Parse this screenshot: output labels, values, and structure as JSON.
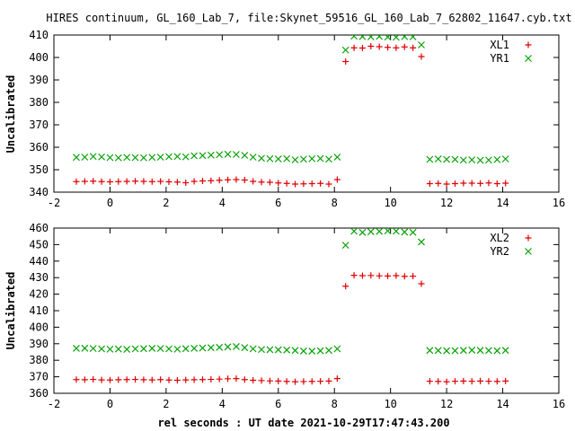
{
  "title": "HIRES continuum, GL_160_Lab_7, file:Skynet_59516_GL_160_Lab_7_62802_11647.cyb.txt",
  "xlabel": "rel seconds : UT date 2021-10-29T17:47:43.200",
  "colors": {
    "red": "#e00000",
    "green": "#00a000"
  },
  "chart_data": [
    {
      "type": "scatter",
      "ylabel": "Uncalibrated",
      "xlim": [
        -2,
        16
      ],
      "ylim": [
        340,
        410
      ],
      "xticks": [
        "-2",
        "0",
        "2",
        "4",
        "6",
        "8",
        "10",
        "12",
        "14",
        "16"
      ],
      "yticks": [
        "340",
        "350",
        "360",
        "370",
        "380",
        "390",
        "400",
        "410"
      ],
      "series": [
        {
          "name": "XL1",
          "marker": "plus",
          "color": "#e00000",
          "x": [
            -1.2,
            -0.9,
            -0.6,
            -0.3,
            0.0,
            0.3,
            0.6,
            0.9,
            1.2,
            1.5,
            1.8,
            2.1,
            2.4,
            2.7,
            3.0,
            3.3,
            3.6,
            3.9,
            4.2,
            4.5,
            4.8,
            5.1,
            5.4,
            5.7,
            6.0,
            6.3,
            6.6,
            6.9,
            7.2,
            7.5,
            7.8,
            8.1,
            8.4,
            8.7,
            9.0,
            9.3,
            9.6,
            9.9,
            10.2,
            10.5,
            10.8,
            11.1,
            11.4,
            11.7,
            12.0,
            12.3,
            12.6,
            12.9,
            13.2,
            13.5,
            13.8,
            14.1
          ],
          "y": [
            344.7,
            344.8,
            344.9,
            344.7,
            344.6,
            344.7,
            344.8,
            344.9,
            344.8,
            344.7,
            344.8,
            344.6,
            344.5,
            344.2,
            344.8,
            345.0,
            345.1,
            345.3,
            345.5,
            345.6,
            345.4,
            344.8,
            344.5,
            344.4,
            344.1,
            343.9,
            343.6,
            343.7,
            343.8,
            343.9,
            343.6,
            345.6,
            398.2,
            404.3,
            404.2,
            405.0,
            404.8,
            404.5,
            404.3,
            404.7,
            404.3,
            400.4,
            343.8,
            343.9,
            343.6,
            343.8,
            344.0,
            344.0,
            343.9,
            344.1,
            343.8,
            344.0
          ]
        },
        {
          "name": "YR1",
          "marker": "cross",
          "color": "#00a000",
          "x": [
            -1.2,
            -0.9,
            -0.6,
            -0.3,
            0.0,
            0.3,
            0.6,
            0.9,
            1.2,
            1.5,
            1.8,
            2.1,
            2.4,
            2.7,
            3.0,
            3.3,
            3.6,
            3.9,
            4.2,
            4.5,
            4.8,
            5.1,
            5.4,
            5.7,
            6.0,
            6.3,
            6.6,
            6.9,
            7.2,
            7.5,
            7.8,
            8.1,
            8.4,
            8.7,
            9.0,
            9.3,
            9.6,
            9.9,
            10.2,
            10.5,
            10.8,
            11.1,
            11.4,
            11.7,
            12.0,
            12.3,
            12.6,
            12.9,
            13.2,
            13.5,
            13.8,
            14.1
          ],
          "y": [
            355.5,
            355.6,
            355.9,
            355.7,
            355.4,
            355.3,
            355.5,
            355.4,
            355.3,
            355.5,
            355.6,
            355.8,
            355.9,
            355.7,
            356.2,
            356.3,
            356.5,
            356.7,
            356.9,
            356.8,
            356.4,
            355.6,
            355.1,
            354.9,
            354.8,
            354.9,
            354.4,
            354.7,
            354.9,
            355.0,
            354.7,
            355.6,
            403.3,
            409.5,
            409.3,
            409.2,
            409.4,
            409.1,
            409.0,
            409.3,
            409.2,
            405.6,
            354.6,
            354.8,
            354.6,
            354.6,
            354.3,
            354.4,
            354.2,
            354.3,
            354.5,
            354.8
          ]
        }
      ]
    },
    {
      "type": "scatter",
      "ylabel": "Uncalibrated",
      "xlim": [
        -2,
        16
      ],
      "ylim": [
        360,
        460
      ],
      "xticks": [
        "-2",
        "0",
        "2",
        "4",
        "6",
        "8",
        "10",
        "12",
        "14",
        "16"
      ],
      "yticks": [
        "360",
        "370",
        "380",
        "390",
        "400",
        "410",
        "420",
        "430",
        "440",
        "450",
        "460"
      ],
      "series": [
        {
          "name": "XL2",
          "marker": "plus",
          "color": "#e00000",
          "x": [
            -1.2,
            -0.9,
            -0.6,
            -0.3,
            0.0,
            0.3,
            0.6,
            0.9,
            1.2,
            1.5,
            1.8,
            2.1,
            2.4,
            2.7,
            3.0,
            3.3,
            3.6,
            3.9,
            4.2,
            4.5,
            4.8,
            5.1,
            5.4,
            5.7,
            6.0,
            6.3,
            6.6,
            6.9,
            7.2,
            7.5,
            7.8,
            8.1,
            8.4,
            8.7,
            9.0,
            9.3,
            9.6,
            9.9,
            10.2,
            10.5,
            10.8,
            11.1,
            11.4,
            11.7,
            12.0,
            12.3,
            12.6,
            12.9,
            13.2,
            13.5,
            13.8,
            14.1
          ],
          "y": [
            368.3,
            368.2,
            368.4,
            368.1,
            368.0,
            368.2,
            368.3,
            368.4,
            368.2,
            368.1,
            368.3,
            368.0,
            367.9,
            368.1,
            368.2,
            368.3,
            368.4,
            368.6,
            368.8,
            368.9,
            368.3,
            367.9,
            367.7,
            367.5,
            367.4,
            367.2,
            367.0,
            367.1,
            367.2,
            367.3,
            367.4,
            368.9,
            424.8,
            431.4,
            431.2,
            431.3,
            431.1,
            431.0,
            431.2,
            430.8,
            430.9,
            426.3,
            367.3,
            367.2,
            367.0,
            367.3,
            367.4,
            367.3,
            367.4,
            367.3,
            367.2,
            367.4
          ]
        },
        {
          "name": "YR2",
          "marker": "cross",
          "color": "#00a000",
          "x": [
            -1.2,
            -0.9,
            -0.6,
            -0.3,
            0.0,
            0.3,
            0.6,
            0.9,
            1.2,
            1.5,
            1.8,
            2.1,
            2.4,
            2.7,
            3.0,
            3.3,
            3.6,
            3.9,
            4.2,
            4.5,
            4.8,
            5.1,
            5.4,
            5.7,
            6.0,
            6.3,
            6.6,
            6.9,
            7.2,
            7.5,
            7.8,
            8.1,
            8.4,
            8.7,
            9.0,
            9.3,
            9.6,
            9.9,
            10.2,
            10.5,
            10.8,
            11.1,
            11.4,
            11.7,
            12.0,
            12.3,
            12.6,
            12.9,
            13.2,
            13.5,
            13.8,
            14.1
          ],
          "y": [
            387.2,
            387.3,
            387.1,
            386.9,
            386.7,
            386.8,
            386.6,
            386.9,
            387.0,
            387.2,
            387.1,
            386.9,
            386.7,
            387.0,
            387.2,
            387.4,
            387.6,
            387.8,
            388.1,
            388.3,
            387.6,
            386.9,
            386.5,
            386.4,
            386.3,
            386.2,
            385.9,
            385.6,
            385.5,
            385.7,
            386.0,
            386.9,
            449.6,
            458.1,
            457.4,
            457.8,
            458.0,
            458.3,
            458.1,
            457.6,
            457.4,
            451.6,
            385.9,
            385.9,
            385.7,
            385.8,
            386.0,
            386.1,
            386.0,
            385.9,
            385.8,
            386.0
          ]
        }
      ]
    }
  ]
}
